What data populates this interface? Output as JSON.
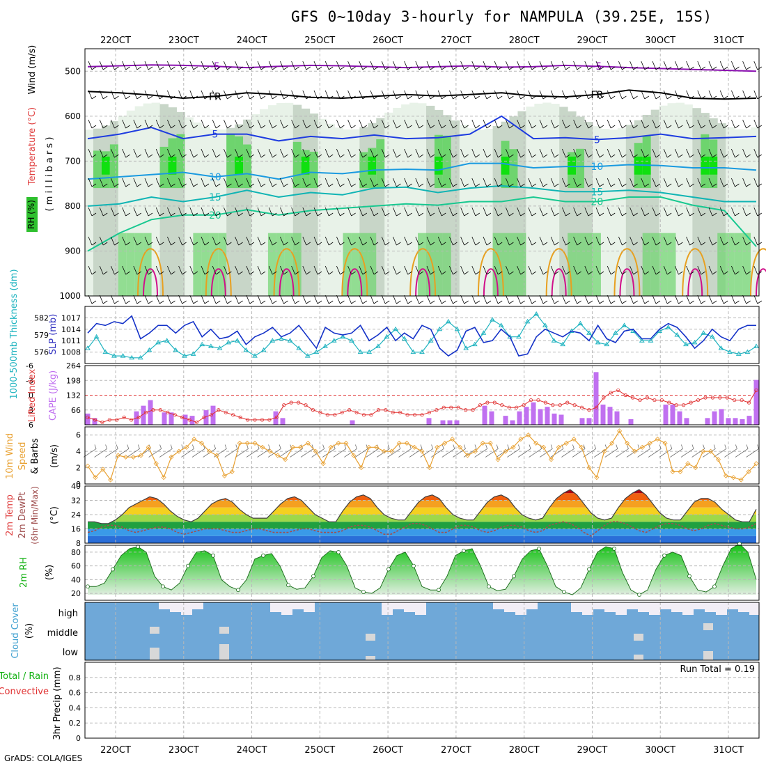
{
  "title": "GFS 0~10day 3-hourly for NAMPULA (39.25E, 15S)",
  "credit": "GrADS: COLA/IGES",
  "date_labels": [
    "22OCT",
    "23OCT",
    "24OCT",
    "25OCT",
    "26OCT",
    "27OCT",
    "28OCT",
    "29OCT",
    "30OCT",
    "31OCT"
  ],
  "chart_data": [
    {
      "type": "heatmap",
      "id": "upper-air",
      "ylabel_parts": [
        "RH (%)",
        "Temperature (°C)",
        "Wind (m/s)"
      ],
      "ylabel_axis": "( m i l l i b a r s )",
      "y_ticks": [
        500,
        600,
        700,
        800,
        900,
        1000
      ],
      "ylim": [
        1000,
        450
      ],
      "colors": {
        "rh_low": "#c8d6c8",
        "rh_mid": "#e8f2e8",
        "rh_high": "#6ed46e",
        "rh_top": "#10e010",
        "temp_purple": "#8a10b0",
        "temp_black": "#000000",
        "temp_blue": "#1e3ce0",
        "temp_cyan": "#1a9ae0",
        "temp_teal": "#10b4b4",
        "temp_green": "#18c890",
        "temp_orange": "#e8a020",
        "temp_red": "#e02020",
        "temp_magenta": "#d0108a"
      },
      "isotherms": [
        {
          "label": "-5",
          "color": "#8a10b0",
          "p": [
            490,
            488,
            486,
            487,
            489,
            492,
            489,
            487,
            488,
            490,
            492,
            490,
            488,
            491,
            490,
            487,
            489,
            492,
            494,
            496,
            498,
            500
          ]
        },
        {
          "label": "FR",
          "color": "#000000",
          "p": [
            545,
            548,
            553,
            560,
            556,
            548,
            552,
            558,
            560,
            556,
            552,
            555,
            552,
            548,
            555,
            557,
            552,
            542,
            548,
            560,
            562,
            560
          ]
        },
        {
          "label": "5",
          "color": "#1e3ce0",
          "p": [
            650,
            640,
            625,
            650,
            640,
            640,
            655,
            645,
            650,
            642,
            650,
            648,
            640,
            600,
            650,
            648,
            652,
            648,
            640,
            650,
            648,
            645
          ]
        },
        {
          "label": "10",
          "color": "#1a9ae0",
          "p": [
            740,
            735,
            730,
            725,
            735,
            728,
            740,
            725,
            728,
            720,
            718,
            720,
            705,
            705,
            715,
            712,
            712,
            708,
            710,
            715,
            715,
            720
          ]
        },
        {
          "label": "15",
          "color": "#10b4b4",
          "p": [
            800,
            795,
            780,
            790,
            780,
            765,
            780,
            770,
            775,
            760,
            758,
            770,
            760,
            755,
            760,
            768,
            768,
            765,
            770,
            780,
            790,
            790
          ]
        },
        {
          "label": "20",
          "color": "#18c890",
          "p": [
            900,
            860,
            830,
            820,
            820,
            808,
            820,
            810,
            805,
            800,
            795,
            798,
            790,
            790,
            780,
            790,
            790,
            780,
            780,
            798,
            810,
            890
          ]
        }
      ],
      "rh_cells_note": "relative humidity shading"
    },
    {
      "type": "line",
      "id": "slp-thickness",
      "ylabel_left": "1000-500mb Thickness (dm)",
      "ylabel_right": "SLP (mb)",
      "left_ticks": [
        576,
        579,
        582
      ],
      "right_ticks": [
        1008,
        1011,
        1014,
        1017
      ],
      "ylim_slp": [
        1005,
        1020
      ],
      "colors": {
        "slp": "#1432c8",
        "thickness": "#20b4c0"
      },
      "series": [
        {
          "name": "SLP (mb)",
          "values": [
            1013,
            1015.5,
            1015,
            1016,
            1015.5,
            1017.5,
            1011.5,
            1013,
            1015,
            1015,
            1013,
            1015,
            1016,
            1012,
            1014,
            1011.5,
            1012,
            1013.5,
            1010,
            1012,
            1013,
            1014.5,
            1012,
            1013,
            1015,
            1012,
            1009,
            1014.5,
            1013,
            1012.5,
            1013,
            1015,
            1011,
            1012.5,
            1014.5,
            1011,
            1013,
            1011.5,
            1015,
            1014,
            1009,
            1007,
            1008.5,
            1013.5,
            1014.5,
            1010.5,
            1011,
            1014,
            1012,
            1007,
            1007.5,
            1012,
            1014,
            1013,
            1012,
            1013.5,
            1013,
            1011,
            1015,
            1011.5,
            1010.5,
            1013.5,
            1014,
            1011.5,
            1011.5,
            1014,
            1015.5,
            1014.5,
            1012,
            1009,
            1011,
            1014,
            1012,
            1011,
            1014,
            1015,
            1015
          ]
        },
        {
          "name": "1000-500mb Thickness (dm)",
          "values": [
            1009,
            1012,
            1008,
            1007,
            1007,
            1006.5,
            1006.5,
            1008.5,
            1010.5,
            1011,
            1008.5,
            1007,
            1007.5,
            1010,
            1009.5,
            1009,
            1010.5,
            1011,
            1008.5,
            1007,
            1008.5,
            1011,
            1011.5,
            1011,
            1009,
            1007,
            1008,
            1009.5,
            1011,
            1012,
            1011,
            1008,
            1008,
            1009.5,
            1012,
            1014,
            1011.5,
            1008,
            1008,
            1011,
            1014,
            1016,
            1014,
            1009,
            1010,
            1013,
            1016.5,
            1015,
            1012,
            1012,
            1016,
            1018,
            1015,
            1011,
            1010,
            1013.5,
            1015.5,
            1013,
            1010.5,
            1010,
            1013,
            1015,
            1013.5,
            1011,
            1011,
            1013.5,
            1014.5,
            1012.5,
            1010,
            1010.5,
            1013,
            1012,
            1009,
            1008,
            1007.5,
            1008,
            1009.5
          ]
        }
      ]
    },
    {
      "type": "bar",
      "id": "cape-li",
      "ylabel_left": "Lifted Index",
      "ylabel_right": "CAPE (J/kg)",
      "left_ticks": [
        -6,
        -3,
        0,
        3,
        6
      ],
      "right_ticks": [
        66,
        132,
        198,
        264
      ],
      "ylim_cape": [
        0,
        264
      ],
      "colors": {
        "cape": "#c070f0",
        "li": "#e03030"
      },
      "series": [
        {
          "name": "CAPE (J/kg)",
          "values": [
            50,
            30,
            0,
            0,
            0,
            0,
            0,
            60,
            85,
            110,
            0,
            55,
            55,
            0,
            45,
            40,
            0,
            65,
            85,
            0,
            0,
            0,
            0,
            0,
            0,
            0,
            0,
            60,
            30,
            0,
            0,
            0,
            0,
            0,
            0,
            0,
            0,
            0,
            20,
            0,
            0,
            0,
            0,
            0,
            0,
            0,
            0,
            0,
            0,
            30,
            0,
            20,
            20,
            20,
            0,
            0,
            0,
            85,
            60,
            0,
            40,
            20,
            60,
            80,
            100,
            70,
            80,
            50,
            45,
            0,
            0,
            30,
            30,
            235,
            90,
            80,
            60,
            0,
            25,
            0,
            0,
            0,
            0,
            90,
            90,
            60,
            30,
            0,
            0,
            30,
            60,
            70,
            30,
            30,
            25,
            40,
            200
          ]
        },
        {
          "name": "Lifted Index",
          "values": [
            4.5,
            5,
            5.5,
            5,
            5,
            4.5,
            5,
            4.5,
            3.5,
            3,
            3,
            3.5,
            4,
            4.5,
            5,
            5.5,
            4.5,
            4,
            3,
            3.5,
            4,
            4.5,
            5,
            5,
            5,
            5,
            4.5,
            2,
            1.5,
            1.5,
            2,
            3,
            3.5,
            4,
            4,
            3.5,
            3,
            3.5,
            4,
            4,
            3,
            3,
            3.5,
            3.5,
            4,
            4,
            4,
            3.5,
            3,
            2.5,
            2.5,
            2.5,
            3,
            3,
            2,
            1.5,
            1.5,
            2,
            2.5,
            2.5,
            2,
            1,
            1,
            1.5,
            2,
            2,
            1.5,
            2,
            2.5,
            3,
            2.5,
            0.5,
            -0.5,
            -1,
            0,
            0.5,
            1,
            0.5,
            1,
            1,
            1.5,
            2,
            2,
            1.5,
            1,
            0.5,
            0.5,
            0.5,
            0.5,
            1,
            1,
            1.5,
            -1
          ]
        }
      ]
    },
    {
      "type": "line",
      "id": "wind10m",
      "ylabel_parts": [
        "10m Wind",
        "Speed",
        "& Barbs",
        "(m/s)"
      ],
      "y_ticks": [
        0,
        2,
        4,
        6
      ],
      "ylim": [
        0,
        7
      ],
      "colors": {
        "speed": "#e8a030"
      },
      "series": [
        {
          "name": "Speed",
          "values": [
            2.2,
            0.8,
            1.8,
            0.5,
            3.5,
            3.3,
            3.3,
            3.5,
            4.5,
            2.5,
            0.8,
            3.3,
            4,
            4.5,
            5.5,
            5,
            4,
            3.5,
            1,
            1.5,
            5,
            5,
            5,
            4.5,
            4,
            3.5,
            3,
            4.5,
            4.5,
            5,
            4,
            2.5,
            4.5,
            5,
            5,
            3.5,
            2,
            4.5,
            4.5,
            4,
            4,
            5,
            5,
            4.5,
            4,
            2,
            4.5,
            5,
            5.5,
            4.5,
            3.5,
            4,
            5,
            5,
            3,
            4,
            4.5,
            5.5,
            6,
            5,
            4.5,
            3,
            4.5,
            5,
            5.5,
            4.5,
            2,
            0.8,
            4,
            5,
            6.5,
            5,
            4,
            4.5,
            5,
            5.5,
            5,
            1.5,
            1.5,
            2.5,
            2,
            4,
            4,
            3,
            1,
            0.8,
            0.5,
            1.5,
            2.5
          ]
        }
      ]
    },
    {
      "type": "area",
      "id": "temp2m",
      "ylabel_parts": [
        "2m Temp",
        "2m DewPt",
        "(6hr Min/Max)",
        "(°C)"
      ],
      "y_ticks": [
        8,
        16,
        24,
        32,
        40
      ],
      "ylim": [
        8,
        40
      ],
      "colors": {
        "temp_line": "#404040",
        "dewpt": "#a05050"
      },
      "series": [
        {
          "name": "2m Temp",
          "values": [
            20,
            20,
            19,
            19,
            21,
            24,
            28,
            30,
            32,
            34,
            33,
            30,
            26,
            23,
            21,
            20,
            22,
            26,
            30,
            32,
            33,
            31,
            27,
            24,
            22,
            22,
            22,
            26,
            30,
            33,
            34,
            32,
            28,
            24,
            22,
            20,
            20,
            26,
            31,
            34,
            35,
            33,
            28,
            24,
            22,
            21,
            21,
            26,
            31,
            34,
            35,
            33,
            28,
            24,
            22,
            21,
            21,
            26,
            31,
            34,
            35,
            33,
            28,
            24,
            22,
            21,
            22,
            28,
            33,
            36,
            38,
            35,
            30,
            25,
            22,
            21,
            22,
            28,
            33,
            36,
            38,
            35,
            30,
            25,
            22,
            21,
            21,
            26,
            31,
            33,
            33,
            31,
            27,
            24,
            21,
            20,
            20,
            27
          ]
        },
        {
          "name": "2m DewPt",
          "values": [
            14,
            15,
            17,
            18,
            18,
            17,
            15,
            14,
            15,
            16,
            17,
            17,
            16,
            14,
            13,
            14,
            15,
            16,
            16,
            16,
            15,
            14,
            14,
            15,
            16,
            16,
            15,
            14,
            14,
            14,
            15,
            16,
            16,
            15,
            14,
            14,
            14,
            15,
            17,
            18,
            18,
            17,
            15,
            13,
            13,
            15,
            17,
            19,
            19,
            18,
            16,
            14,
            14,
            16,
            18,
            18,
            17,
            15,
            14,
            15,
            17,
            18,
            18,
            17,
            15,
            14,
            15,
            18,
            19,
            20,
            19,
            17,
            14,
            12,
            15,
            18,
            20,
            20,
            19,
            17,
            15,
            14,
            16,
            18,
            19,
            19,
            18,
            16,
            15,
            16,
            18,
            19,
            18,
            17,
            16,
            16,
            17,
            19
          ]
        }
      ]
    },
    {
      "type": "area",
      "id": "rh2m",
      "ylabel_parts": [
        "2m RH",
        "(%)"
      ],
      "y_ticks": [
        20,
        40,
        60,
        80
      ],
      "ylim": [
        10,
        90
      ],
      "colors": {
        "rh_top": "#10c010",
        "rh_bottom": "#e0eee0"
      },
      "series": [
        {
          "name": "2m RH",
          "values": [
            30,
            30,
            35,
            55,
            75,
            85,
            88,
            80,
            45,
            30,
            25,
            35,
            60,
            80,
            82,
            75,
            40,
            30,
            25,
            40,
            70,
            75,
            78,
            60,
            32,
            26,
            28,
            45,
            72,
            82,
            80,
            60,
            28,
            22,
            20,
            28,
            55,
            75,
            80,
            60,
            30,
            25,
            25,
            45,
            75,
            82,
            85,
            60,
            30,
            24,
            26,
            45,
            70,
            82,
            85,
            60,
            30,
            22,
            18,
            28,
            55,
            80,
            88,
            85,
            50,
            25,
            18,
            25,
            55,
            75,
            80,
            75,
            45,
            25,
            22,
            30,
            60,
            85,
            92,
            80,
            40
          ]
        }
      ]
    },
    {
      "type": "table",
      "id": "cloud-cover",
      "ylabel_parts": [
        "Cloud Cover",
        "(%)"
      ],
      "levels": [
        "high",
        "middle",
        "low"
      ],
      "colors": {
        "cloud": "#6fa8d8",
        "clear_high": "#f2eef6",
        "clear_mid": "#d8d8d8"
      }
    },
    {
      "type": "bar",
      "id": "precip",
      "ylabel_parts": [
        "Total / Rain",
        "Convective",
        "3hr Precip (mm)"
      ],
      "y_ticks": [
        "0",
        "0.2",
        "0.4",
        "0.6",
        "0.8"
      ],
      "ylim": [
        0,
        1
      ],
      "annotation": "Run Total = 0.19",
      "colors": {
        "total": "#10b010",
        "convective": "#e03030"
      },
      "series": [
        {
          "name": "Total / Rain",
          "values": []
        }
      ]
    }
  ]
}
